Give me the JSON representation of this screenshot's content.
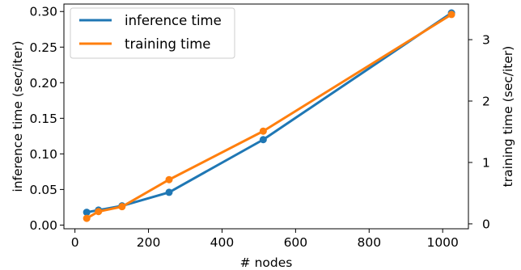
{
  "chart_data": {
    "type": "line",
    "x": [
      32,
      64,
      128,
      256,
      512,
      1024
    ],
    "xlabel": "# nodes",
    "xlim": [
      -30,
      1070
    ],
    "xticks": [
      0,
      200,
      400,
      600,
      800,
      1000
    ],
    "ylabel_left": "inference time (sec/iter)",
    "ylim_left": [
      -0.0052,
      0.3105
    ],
    "yticks_left": [
      0.0,
      0.05,
      0.1,
      0.15,
      0.2,
      0.25,
      0.3
    ],
    "ylabel_right": "training time (sec/iter)",
    "ylim_right": [
      -0.08,
      3.58
    ],
    "yticks_right": [
      0,
      1,
      2,
      3
    ],
    "series": [
      {
        "name": "inference time",
        "axis": "left",
        "color": "#1f77b4",
        "values": [
          0.018,
          0.021,
          0.027,
          0.046,
          0.12,
          0.298
        ]
      },
      {
        "name": "training time",
        "axis": "right",
        "color": "#ff7f0e",
        "values": [
          0.09,
          0.2,
          0.28,
          0.72,
          1.51,
          3.41
        ]
      }
    ],
    "legend": {
      "position": "top-left"
    },
    "grid": false
  }
}
